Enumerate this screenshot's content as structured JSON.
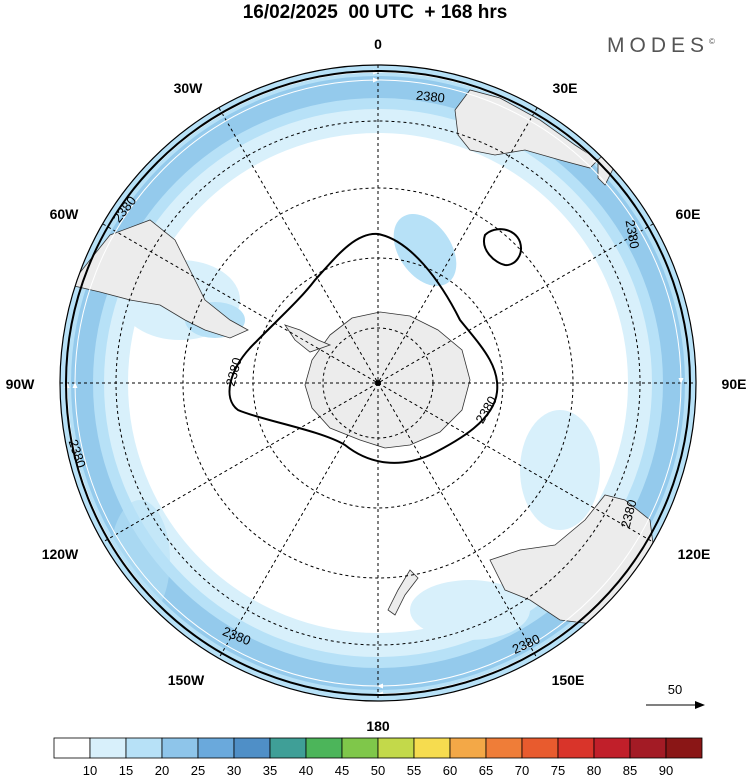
{
  "header": {
    "title": "16/02/2025  00 UTC  + 168 hrs",
    "brand": "MODES"
  },
  "map": {
    "projection": "south-polar-stereographic",
    "contour_value": "2380",
    "longitude_labels": {
      "0": "0",
      "30E": "30E",
      "60E": "60E",
      "90E": "90E",
      "120E": "120E",
      "150E": "150E",
      "180": "180",
      "150W": "150W",
      "120W": "120W",
      "90W": "90W",
      "60W": "60W",
      "30W": "30W"
    },
    "reference_vector": "50"
  },
  "colorbar": {
    "labels": [
      "10",
      "15",
      "20",
      "25",
      "30",
      "35",
      "40",
      "45",
      "50",
      "55",
      "60",
      "65",
      "70",
      "75",
      "80",
      "85",
      "90"
    ],
    "colors": [
      "#ffffff",
      "#d8f0fb",
      "#b7e1f7",
      "#8ec5ea",
      "#6aa9dc",
      "#4f8fc7",
      "#3f9f97",
      "#4cb55a",
      "#7fc74a",
      "#c3d94a",
      "#f6dc4f",
      "#f3a847",
      "#ef7d38",
      "#e85b2e",
      "#d9342a",
      "#c11f2a",
      "#a31b25",
      "#8a1616"
    ]
  }
}
